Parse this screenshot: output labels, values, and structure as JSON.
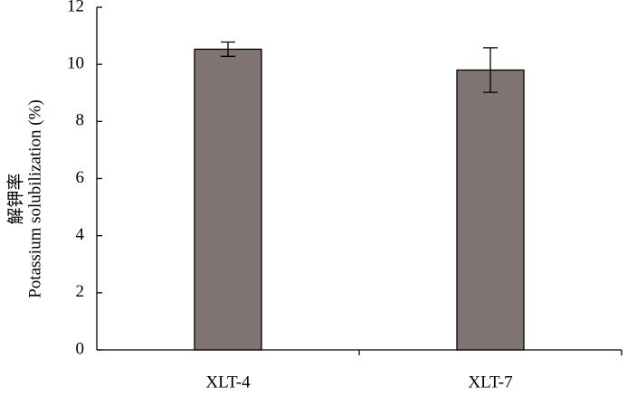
{
  "chart_data": {
    "type": "bar",
    "ylabel_zh": "解钾率",
    "ylabel": "Potassium solubilization (%)",
    "categories": [
      "XLT-4",
      "XLT-7"
    ],
    "values": [
      10.53,
      9.8
    ],
    "errors": [
      0.25,
      0.78
    ],
    "color": "#7f7472",
    "ylim": [
      0,
      12
    ],
    "yticks": [
      0,
      2,
      4,
      6,
      8,
      10,
      12
    ],
    "grid": false
  }
}
